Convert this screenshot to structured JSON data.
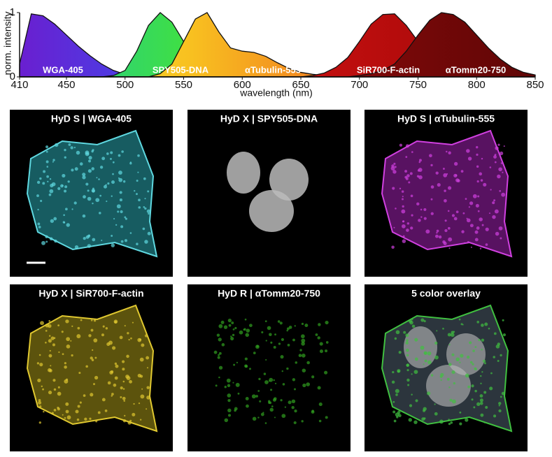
{
  "chart_data": {
    "type": "area",
    "x_label": "wavelength (nm)",
    "y_label": "norm. intensity",
    "x": [
      410,
      420,
      430,
      440,
      450,
      460,
      470,
      480,
      490,
      500,
      510,
      520,
      530,
      540,
      550,
      560,
      570,
      580,
      590,
      600,
      610,
      620,
      630,
      640,
      650,
      660,
      670,
      680,
      690,
      700,
      710,
      720,
      730,
      740,
      750,
      760,
      770,
      780,
      790,
      800,
      810,
      820,
      830,
      840,
      850
    ],
    "xlim": [
      410,
      850
    ],
    "xticks": [
      410,
      450,
      500,
      550,
      600,
      650,
      700,
      750,
      800,
      850
    ],
    "ylim": [
      0,
      1
    ],
    "yticks": [
      0,
      1
    ],
    "series": [
      {
        "name": "WGA-405",
        "color": "#4a3ce0",
        "gradient": [
          "#6a1fd0",
          "#3a4ff0",
          "#30c8f0",
          "#9ff0f0"
        ],
        "values": [
          0.2,
          0.98,
          0.95,
          0.82,
          0.65,
          0.48,
          0.33,
          0.2,
          0.1,
          0.04,
          0.01,
          0,
          0,
          0,
          0,
          0,
          0,
          0,
          0,
          0,
          0,
          0,
          0,
          0,
          0,
          0,
          0,
          0,
          0,
          0,
          0,
          0,
          0,
          0,
          0,
          0,
          0,
          0,
          0,
          0,
          0,
          0,
          0,
          0,
          0
        ]
      },
      {
        "name": "SPY505-DNA",
        "color": "#7ee03a",
        "gradient": [
          "#20c8a0",
          "#40e040",
          "#c8f030",
          "#f0e040"
        ],
        "values": [
          0,
          0,
          0,
          0,
          0,
          0,
          0,
          0,
          0.02,
          0.1,
          0.4,
          0.8,
          1.0,
          0.85,
          0.55,
          0.35,
          0.25,
          0.17,
          0.1,
          0.06,
          0.03,
          0.01,
          0,
          0,
          0,
          0,
          0,
          0,
          0,
          0,
          0,
          0,
          0,
          0,
          0,
          0,
          0,
          0,
          0,
          0,
          0,
          0,
          0,
          0,
          0
        ]
      },
      {
        "name": "αTubulin-555",
        "color": "#f09020",
        "gradient": [
          "#f0e830",
          "#f8c020",
          "#f07020",
          "#e02010"
        ],
        "values": [
          0,
          0,
          0,
          0,
          0,
          0,
          0,
          0,
          0,
          0,
          0,
          0,
          0.05,
          0.2,
          0.55,
          0.9,
          1.0,
          0.7,
          0.45,
          0.4,
          0.38,
          0.32,
          0.22,
          0.13,
          0.07,
          0.04,
          0.02,
          0.01,
          0,
          0,
          0,
          0,
          0,
          0,
          0,
          0,
          0,
          0,
          0,
          0,
          0,
          0,
          0,
          0,
          0
        ]
      },
      {
        "name": "SiR700-F-actin",
        "color": "#c81010",
        "gradient": [
          "#e02018",
          "#c81010",
          "#a00808"
        ],
        "values": [
          0,
          0,
          0,
          0,
          0,
          0,
          0,
          0,
          0,
          0,
          0,
          0,
          0,
          0,
          0,
          0,
          0,
          0,
          0,
          0,
          0,
          0,
          0,
          0,
          0,
          0.02,
          0.06,
          0.15,
          0.3,
          0.55,
          0.82,
          0.97,
          0.98,
          0.8,
          0.55,
          0.35,
          0.22,
          0.14,
          0.09,
          0.06,
          0.04,
          0.02,
          0.01,
          0,
          0
        ]
      },
      {
        "name": "αTomm20-750",
        "color": "#8c0a0a",
        "gradient": [
          "#b01010",
          "#8c0a0a",
          "#600606"
        ],
        "values": [
          0,
          0,
          0,
          0,
          0,
          0,
          0,
          0,
          0,
          0,
          0,
          0,
          0,
          0,
          0,
          0,
          0,
          0,
          0,
          0,
          0,
          0,
          0,
          0,
          0,
          0,
          0,
          0,
          0,
          0.02,
          0.05,
          0.1,
          0.2,
          0.4,
          0.65,
          0.88,
          1.0,
          0.97,
          0.85,
          0.65,
          0.45,
          0.28,
          0.15,
          0.07,
          0.03
        ]
      }
    ]
  },
  "panels": [
    {
      "title": "HyD S | WGA-405"
    },
    {
      "title": "HyD X | SPY505-DNA"
    },
    {
      "title": "HyD S | αTubulin-555"
    },
    {
      "title": "HyD X | SiR700-F-actin"
    },
    {
      "title": "HyD R | αTomm20-750"
    },
    {
      "title": "5 color overlay"
    }
  ]
}
